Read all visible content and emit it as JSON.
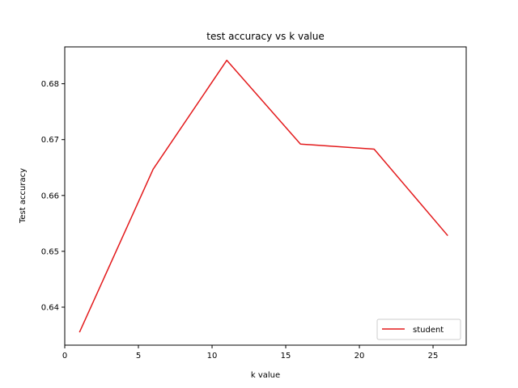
{
  "chart_data": {
    "type": "line",
    "title": "test accuracy vs k value",
    "xlabel": "k value",
    "ylabel": "Test accuracy",
    "xlim": [
      0.0,
      27.25
    ],
    "ylim": [
      0.6332,
      0.6866
    ],
    "xticks": [
      0,
      5,
      10,
      15,
      20,
      25
    ],
    "yticks": [
      0.64,
      0.65,
      0.66,
      0.67,
      0.68
    ],
    "ytick_labels": [
      "0.64",
      "0.65",
      "0.66",
      "0.67",
      "0.68"
    ],
    "grid": false,
    "legend_position": "lower-right",
    "series": [
      {
        "name": "student",
        "color": "#e31a1c",
        "x": [
          1,
          6,
          11,
          16,
          21,
          26
        ],
        "y": [
          0.6355,
          0.6647,
          0.6842,
          0.6692,
          0.6683,
          0.6528
        ]
      }
    ]
  }
}
